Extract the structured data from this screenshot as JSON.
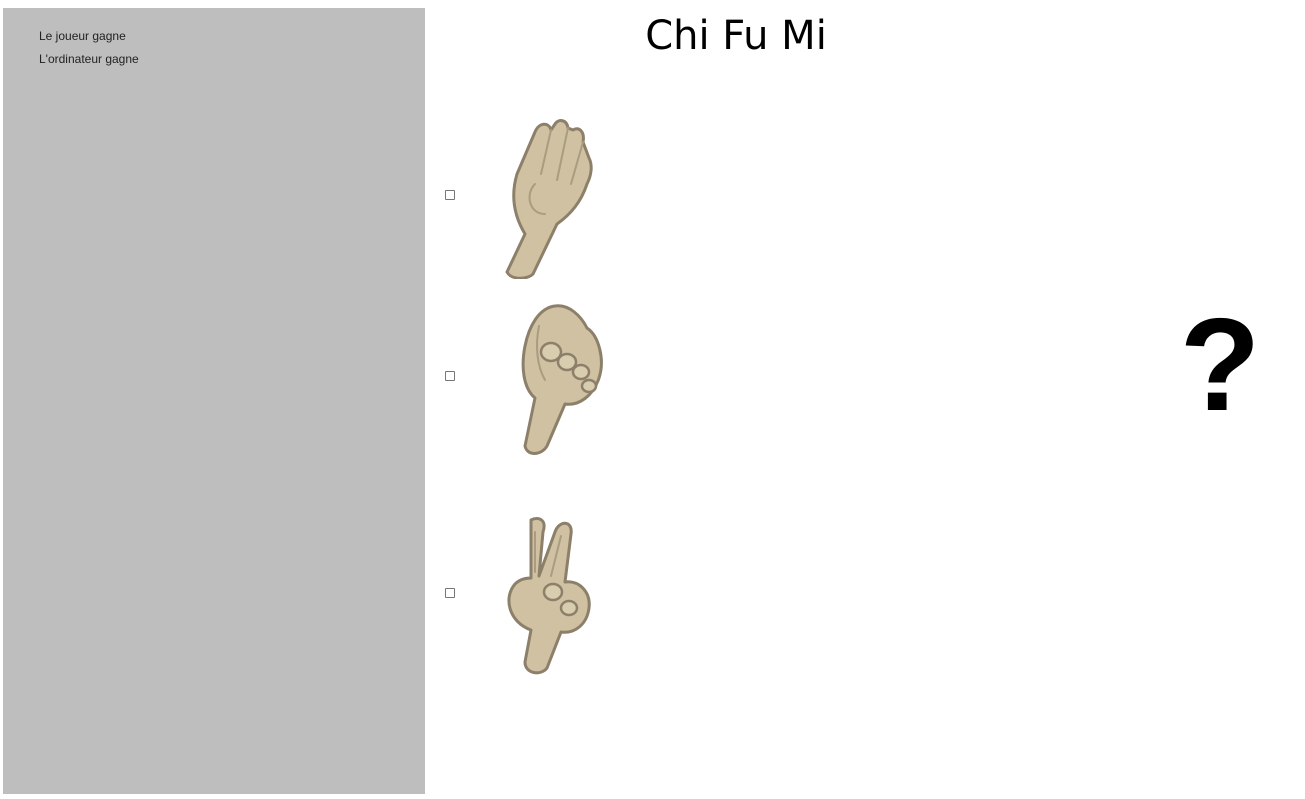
{
  "scoreboard": {
    "player_wins_label": "Le joueur gagne",
    "computer_wins_label": "L'ordinateur gagne"
  },
  "title": "Chi Fu Mi",
  "choices": [
    {
      "name": "paper",
      "icon": "paper-hand-icon"
    },
    {
      "name": "rock",
      "icon": "rock-fist-icon"
    },
    {
      "name": "scissors",
      "icon": "scissors-hand-icon"
    }
  ],
  "computer_choice": "?",
  "colors": {
    "sidebar_bg": "#bebebe",
    "skin": "#cfc1a1",
    "outline": "#8c806a"
  }
}
